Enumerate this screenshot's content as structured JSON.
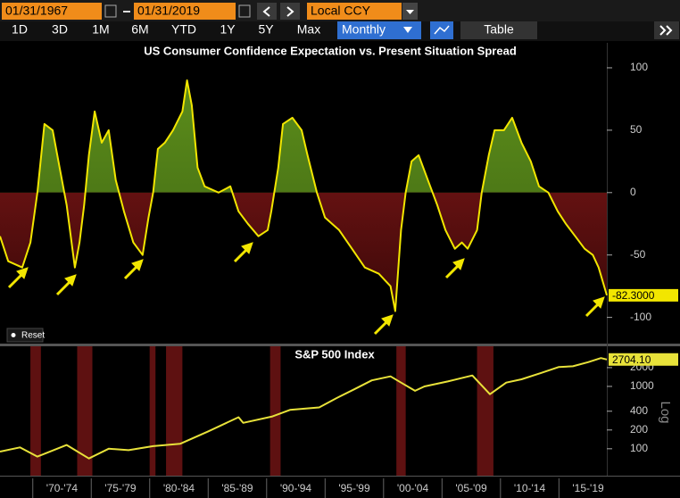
{
  "toolbar": {
    "start_date": "01/31/1967",
    "end_date": "01/31/2019",
    "currency": "Local CCY",
    "ranges": [
      "1D",
      "3D",
      "1M",
      "6M",
      "YTD",
      "1Y",
      "5Y",
      "Max"
    ],
    "frequency": "Monthly",
    "view": "Table"
  },
  "reset": "Reset",
  "chart_data": [
    {
      "type": "area",
      "title": "US Consumer Confidence Expectation vs. Present Situation Spread",
      "x": [
        1967.2,
        1967.9,
        1969.1,
        1969.8,
        1970.4,
        1971.0,
        1971.7,
        1972.3,
        1972.9,
        1973.6,
        1974.0,
        1974.4,
        1974.8,
        1975.3,
        1975.9,
        1976.5,
        1977.1,
        1977.8,
        1978.6,
        1979.4,
        1979.9,
        1980.3,
        1980.7,
        1981.3,
        1982.0,
        1982.8,
        1983.2,
        1983.6,
        1984.1,
        1984.7,
        1985.9,
        1986.9,
        1987.6,
        1988.4,
        1989.3,
        1990.1,
        1990.4,
        1991.0,
        1991.4,
        1992.2,
        1993.0,
        1993.5,
        1994.3,
        1995.0,
        1996.2,
        1997.3,
        1998.4,
        1999.6,
        2000.6,
        2001.0,
        2001.5,
        2001.9,
        2002.4,
        2003.0,
        2003.8,
        2004.6,
        2005.3,
        2006.1,
        2006.7,
        2007.2,
        2008.0,
        2008.4,
        2009.0,
        2009.5,
        2010.3,
        2011.0,
        2011.8,
        2012.6,
        2013.3,
        2014.1,
        2014.9,
        2015.6,
        2016.4,
        2017.2,
        2017.9,
        2018.4,
        2019.1
      ],
      "values": [
        -35,
        -55,
        -60,
        -40,
        0,
        55,
        50,
        20,
        -10,
        -60,
        -40,
        -10,
        30,
        65,
        40,
        50,
        10,
        -15,
        -40,
        -50,
        -20,
        0,
        35,
        40,
        50,
        65,
        90,
        70,
        20,
        5,
        0,
        5,
        -15,
        -25,
        -35,
        -30,
        -15,
        20,
        55,
        60,
        50,
        30,
        0,
        -20,
        -30,
        -45,
        -60,
        -65,
        -75,
        -95,
        -30,
        0,
        25,
        30,
        10,
        -10,
        -30,
        -45,
        -40,
        -45,
        -30,
        0,
        30,
        50,
        50,
        60,
        40,
        25,
        5,
        0,
        -15,
        -25,
        -35,
        -45,
        -50,
        -60,
        -82.3
      ],
      "color": "#f2e600",
      "positive_color": "#5c8d1b",
      "negative_color": "#8c1a1a",
      "xlim": [
        1967.2,
        2019.1
      ],
      "ylim": [
        -121,
        120
      ],
      "yticks": [
        100,
        50,
        0,
        -50,
        -100
      ],
      "last_value": {
        "value": -82.3,
        "label": "-82.3000"
      }
    },
    {
      "type": "line",
      "title": "S&P 500 Index",
      "x": [
        1967.2,
        1968.9,
        1970.4,
        1972.9,
        1974.8,
        1976.5,
        1978.2,
        1980.3,
        1982.6,
        1985.0,
        1987.6,
        1988.0,
        1990.5,
        1992.0,
        1994.5,
        1996.0,
        1997.5,
        1999.0,
        2000.6,
        2001.5,
        2002.7,
        2003.5,
        2005.5,
        2007.6,
        2009.1,
        2010.5,
        2011.8,
        2013.5,
        2015.0,
        2016.2,
        2017.5,
        2018.6,
        2019.1
      ],
      "values": [
        90,
        105,
        75,
        115,
        70,
        100,
        95,
        110,
        120,
        190,
        320,
        260,
        330,
        420,
        460,
        650,
        900,
        1250,
        1450,
        1150,
        850,
        1000,
        1200,
        1500,
        750,
        1150,
        1300,
        1650,
        2050,
        2100,
        2450,
        2850,
        2704.1
      ],
      "color": "#e8e23a",
      "log_scale": true,
      "y_axis_label": "Log",
      "xlim": [
        1967.2,
        2019.1
      ],
      "ylim": [
        37,
        4400
      ],
      "yticks": [
        100,
        200,
        400,
        1000,
        2000
      ],
      "last_value": {
        "value": 2704.1,
        "label": "2704.10"
      },
      "shaded_periods": [
        [
          1969.8,
          1970.7
        ],
        [
          1973.8,
          1975.1
        ],
        [
          1980.0,
          1980.5
        ],
        [
          1981.4,
          1982.8
        ],
        [
          1990.3,
          1991.2
        ],
        [
          2001.1,
          2001.9
        ],
        [
          2008.0,
          2009.4
        ]
      ],
      "shade_color": "#6e1414",
      "xticks": [
        {
          "value": 1972.5,
          "label": "'70-'74"
        },
        {
          "value": 1977.5,
          "label": "'75-'79"
        },
        {
          "value": 1982.5,
          "label": "'80-'84"
        },
        {
          "value": 1987.5,
          "label": "'85-'89"
        },
        {
          "value": 1992.5,
          "label": "'90-'94"
        },
        {
          "value": 1997.5,
          "label": "'95-'99"
        },
        {
          "value": 2002.5,
          "label": "'00-'04"
        },
        {
          "value": 2007.5,
          "label": "'05-'09"
        },
        {
          "value": 2012.5,
          "label": "'10-'14"
        },
        {
          "value": 2017.5,
          "label": "'15-'19"
        }
      ]
    }
  ]
}
